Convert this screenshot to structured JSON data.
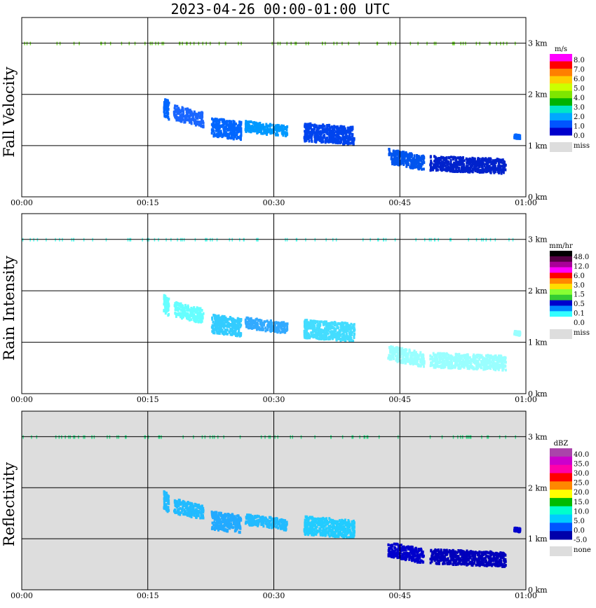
{
  "title": "2023-04-26  00:00-01:00 UTC",
  "time_ticks": [
    "00:00",
    "00:15",
    "00:30",
    "00:45",
    "01:00"
  ],
  "height_ticks": [
    "0 km",
    "1 km",
    "2 km",
    "3 km"
  ],
  "chart_data": [
    {
      "type": "heatmap",
      "ylabel": "Fall Velocity",
      "x": [
        "00:00",
        "01:00"
      ],
      "ylim": [
        0,
        3.5
      ],
      "grid": true,
      "background": "#ffffff",
      "colorbar": {
        "unit": "m/s",
        "labels": [
          "8.0",
          "7.0",
          "6.0",
          "5.0",
          "4.0",
          "3.0",
          "2.0",
          "1.0",
          "0.0"
        ],
        "missing_label": "miss",
        "colors": [
          "#ff00ff",
          "#ff0000",
          "#ff7f00",
          "#ffcc00",
          "#ccff00",
          "#7fe600",
          "#00b300",
          "#00e6c8",
          "#00a8ff",
          "#0055ff",
          "#0000cc"
        ]
      },
      "clusters": [
        {
          "t0": 16.8,
          "t1": 17.4,
          "z0": 1.5,
          "z1": 2.0,
          "color": "#0066ff"
        },
        {
          "t0": 18.0,
          "t1": 21.5,
          "z0": 1.4,
          "z1": 1.8,
          "color": "#1a66ff"
        },
        {
          "t0": 22.5,
          "t1": 26.0,
          "z0": 1.1,
          "z1": 1.6,
          "color": "#0066ff"
        },
        {
          "t0": 26.5,
          "t1": 31.5,
          "z0": 1.2,
          "z1": 1.5,
          "color": "#0099ff"
        },
        {
          "t0": 33.5,
          "t1": 39.5,
          "z0": 1.0,
          "z1": 1.5,
          "color": "#0044ee"
        },
        {
          "t0": 43.5,
          "t1": 47.8,
          "z0": 0.55,
          "z1": 0.95,
          "color": "#0055ee"
        },
        {
          "t0": 48.5,
          "t1": 57.5,
          "z0": 0.45,
          "z1": 0.85,
          "color": "#0022cc"
        },
        {
          "t0": 58.5,
          "t1": 59.2,
          "z0": 1.15,
          "z1": 1.25,
          "color": "#0066ff"
        }
      ]
    },
    {
      "type": "heatmap",
      "ylabel": "Rain Intensity",
      "x": [
        "00:00",
        "01:00"
      ],
      "ylim": [
        0,
        3.5
      ],
      "grid": true,
      "background": "#ffffff",
      "colorbar": {
        "unit": "mm/hr",
        "labels": [
          "48.0",
          "12.0",
          "6.0",
          "3.0",
          "1.5",
          "0.5",
          "0.1",
          "0.0"
        ],
        "missing_label": "miss",
        "colors": [
          "#000000",
          "#550044",
          "#aa0099",
          "#ff00ff",
          "#ff0000",
          "#ff8800",
          "#ffdd00",
          "#88ff33",
          "#33cc33",
          "#0000cc",
          "#0088ff",
          "#33ffff",
          "#ffffff"
        ]
      },
      "clusters": [
        {
          "t0": 16.8,
          "t1": 17.4,
          "z0": 1.5,
          "z1": 2.0,
          "color": "#66ffff"
        },
        {
          "t0": 18.0,
          "t1": 21.5,
          "z0": 1.4,
          "z1": 1.8,
          "color": "#66ffff"
        },
        {
          "t0": 22.5,
          "t1": 26.0,
          "z0": 1.1,
          "z1": 1.6,
          "color": "#33ccff"
        },
        {
          "t0": 26.5,
          "t1": 31.5,
          "z0": 1.2,
          "z1": 1.5,
          "color": "#33aaff"
        },
        {
          "t0": 33.5,
          "t1": 39.5,
          "z0": 1.0,
          "z1": 1.5,
          "color": "#44ddff"
        },
        {
          "t0": 43.5,
          "t1": 47.8,
          "z0": 0.55,
          "z1": 0.95,
          "color": "#99ffff"
        },
        {
          "t0": 48.5,
          "t1": 57.5,
          "z0": 0.45,
          "z1": 0.85,
          "color": "#99ffff"
        },
        {
          "t0": 58.5,
          "t1": 59.2,
          "z0": 1.15,
          "z1": 1.25,
          "color": "#99ffff"
        }
      ]
    },
    {
      "type": "heatmap",
      "ylabel": "Reflectivity",
      "x": [
        "00:00",
        "01:00"
      ],
      "ylim": [
        0,
        3.5
      ],
      "grid": true,
      "background": "#dddddd",
      "colorbar": {
        "unit": "dBZ",
        "labels": [
          "40.0",
          "35.0",
          "30.0",
          "25.0",
          "20.0",
          "15.0",
          "10.0",
          "5.0",
          "0.0",
          "-5.0"
        ],
        "missing_label": "none",
        "colors": [
          "#aa44aa",
          "#cc00cc",
          "#ff00aa",
          "#ff0000",
          "#ff8800",
          "#ffff00",
          "#00bb00",
          "#00ffcc",
          "#00ccff",
          "#0055ff",
          "#0000aa"
        ]
      },
      "clusters": [
        {
          "t0": 16.8,
          "t1": 17.4,
          "z0": 1.5,
          "z1": 2.0,
          "color": "#22bbff"
        },
        {
          "t0": 18.0,
          "t1": 21.5,
          "z0": 1.4,
          "z1": 1.8,
          "color": "#22bbff"
        },
        {
          "t0": 22.5,
          "t1": 26.0,
          "z0": 1.1,
          "z1": 1.6,
          "color": "#22aaff"
        },
        {
          "t0": 26.5,
          "t1": 31.5,
          "z0": 1.2,
          "z1": 1.5,
          "color": "#22bbff"
        },
        {
          "t0": 33.5,
          "t1": 39.5,
          "z0": 1.0,
          "z1": 1.5,
          "color": "#22ccff"
        },
        {
          "t0": 43.5,
          "t1": 47.8,
          "z0": 0.55,
          "z1": 0.95,
          "color": "#0000cc"
        },
        {
          "t0": 48.5,
          "t1": 57.5,
          "z0": 0.45,
          "z1": 0.85,
          "color": "#0000bb"
        },
        {
          "t0": 58.5,
          "t1": 59.2,
          "z0": 1.15,
          "z1": 1.25,
          "color": "#0000cc"
        }
      ]
    }
  ]
}
